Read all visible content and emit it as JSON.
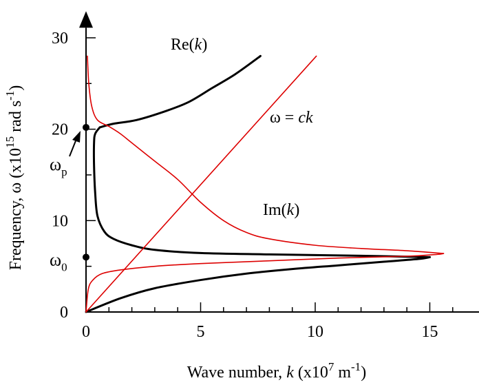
{
  "chart_data": {
    "type": "line",
    "title": "",
    "xlabel": {
      "prefix": "Wave number, ",
      "var": "k",
      "unit_open": " (x10",
      "unit_exp": "7",
      "unit_mid": " m",
      "unit_exp2": "-1",
      "unit_close": ")"
    },
    "ylabel": {
      "prefix": "Frequency, ",
      "var": "ω",
      "unit_open": " (x10",
      "unit_exp": "15",
      "unit_close": "  rad s",
      "unit_exp2": "-1",
      "unit_end": ")"
    },
    "xlim": [
      0,
      16.5
    ],
    "ylim": [
      0,
      30.5
    ],
    "xticks": [
      0,
      5,
      10,
      15
    ],
    "yticks": [
      0,
      10,
      20,
      30
    ],
    "xtick_labels": [
      "0",
      "5",
      "10",
      "15"
    ],
    "ytick_labels": [
      "0",
      "10",
      "20",
      "30"
    ],
    "grid": false,
    "markers": {
      "omega_p": {
        "base": "ω",
        "sub": "p",
        "y": 20.2
      },
      "omega_0": {
        "base": "ω",
        "sub": "0",
        "y": 6.0
      }
    },
    "annotations": {
      "re_label": {
        "prefix": "Re(",
        "var": "k",
        "suffix": ")"
      },
      "im_label": {
        "prefix": "Im(",
        "var": "k",
        "suffix": ")"
      },
      "light_label": {
        "prefix": "ω = ",
        "var": "ck"
      }
    },
    "series": [
      {
        "name": "Re(k)",
        "color": "#000000",
        "segments": [
          [
            [
              0,
              0
            ],
            [
              1.5,
              1.5
            ],
            [
              3,
              2.6
            ],
            [
              5,
              3.5
            ],
            [
              7,
              4.2
            ],
            [
              9,
              4.7
            ],
            [
              11,
              5.1
            ],
            [
              13,
              5.5
            ],
            [
              14.5,
              5.8
            ],
            [
              15,
              6.0
            ]
          ],
          [
            [
              15,
              6.0
            ],
            [
              12,
              6.15
            ],
            [
              8,
              6.3
            ],
            [
              5,
              6.45
            ],
            [
              3,
              6.8
            ],
            [
              2,
              7.3
            ],
            [
              1.2,
              8.0
            ],
            [
              0.8,
              8.8
            ],
            [
              0.5,
              10.5
            ],
            [
              0.4,
              13
            ],
            [
              0.35,
              16
            ],
            [
              0.35,
              18.5
            ],
            [
              0.4,
              19.5
            ],
            [
              0.6,
              20.2
            ]
          ],
          [
            [
              0.6,
              20.2
            ],
            [
              1.2,
              20.6
            ],
            [
              2.2,
              21.0
            ],
            [
              3.5,
              22.0
            ],
            [
              4.5,
              23.0
            ],
            [
              5.5,
              24.5
            ],
            [
              6.5,
              26.0
            ],
            [
              7.5,
              27.8
            ],
            [
              7.6,
              28.0
            ]
          ]
        ]
      },
      {
        "name": "Im(k)",
        "color": "#dd0000",
        "segments": [
          [
            [
              0,
              0
            ],
            [
              0.1,
              2.5
            ],
            [
              0.3,
              3.5
            ],
            [
              0.7,
              4.2
            ],
            [
              1.5,
              4.6
            ],
            [
              3,
              5.0
            ],
            [
              5,
              5.3
            ],
            [
              8,
              5.6
            ],
            [
              11,
              5.9
            ],
            [
              14,
              6.1
            ],
            [
              15.3,
              6.3
            ],
            [
              15.6,
              6.4
            ]
          ],
          [
            [
              15.6,
              6.4
            ],
            [
              14,
              6.7
            ],
            [
              12,
              6.95
            ],
            [
              10,
              7.3
            ],
            [
              8,
              8.0
            ],
            [
              7,
              8.7
            ],
            [
              6,
              10.0
            ],
            [
              5,
              12.0
            ],
            [
              4,
              14.5
            ],
            [
              3,
              16.5
            ],
            [
              2,
              18.5
            ],
            [
              1.5,
              19.5
            ],
            [
              1,
              20.3
            ],
            [
              0.5,
              21.0
            ],
            [
              0.25,
              22.5
            ],
            [
              0.12,
              25
            ],
            [
              0.06,
              28
            ]
          ]
        ]
      },
      {
        "name": "ω = ck",
        "color": "#dd0000",
        "segments": [
          [
            [
              0,
              0
            ],
            [
              10.05,
              28
            ]
          ]
        ]
      }
    ]
  }
}
